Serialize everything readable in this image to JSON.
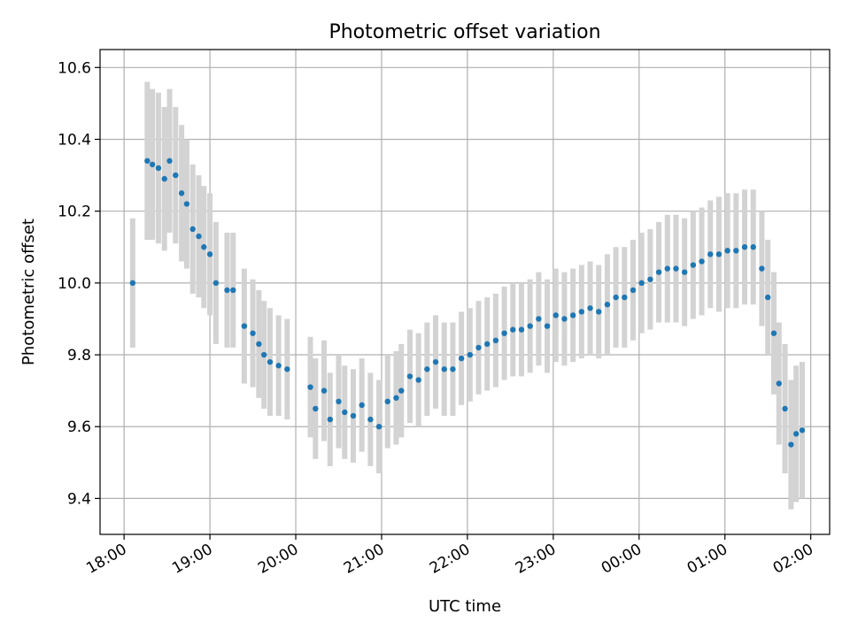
{
  "chart_data": {
    "type": "scatter",
    "title": "Photometric offset variation",
    "xlabel": "UTC time",
    "ylabel": "Photometric offset",
    "x_unit": "hours",
    "xlim": [
      -0.28,
      8.22
    ],
    "ylim": [
      9.3,
      10.65
    ],
    "x_ticks": [
      {
        "value": 0,
        "label": "18:00"
      },
      {
        "value": 1,
        "label": "19:00"
      },
      {
        "value": 2,
        "label": "20:00"
      },
      {
        "value": 3,
        "label": "21:00"
      },
      {
        "value": 4,
        "label": "22:00"
      },
      {
        "value": 5,
        "label": "23:00"
      },
      {
        "value": 6,
        "label": "00:00"
      },
      {
        "value": 7,
        "label": "01:00"
      },
      {
        "value": 8,
        "label": "02:00"
      }
    ],
    "y_ticks": [
      {
        "value": 9.4,
        "label": "9.4"
      },
      {
        "value": 9.6,
        "label": "9.6"
      },
      {
        "value": 9.8,
        "label": "9.8"
      },
      {
        "value": 10.0,
        "label": "10.0"
      },
      {
        "value": 10.2,
        "label": "10.2"
      },
      {
        "value": 10.4,
        "label": "10.4"
      },
      {
        "value": 10.6,
        "label": "10.6"
      }
    ],
    "grid": true,
    "colors": {
      "points": "#1f77b4",
      "error_bars": "#d3d3d3",
      "grid": "#b0b0b0"
    },
    "series": [
      {
        "x_utc": [
          "18:06",
          "18:16",
          "18:20",
          "18:24",
          "18:28",
          "18:32",
          "18:36",
          "18:40",
          "18:44",
          "18:48",
          "18:52",
          "18:56",
          "19:00",
          "19:04",
          "19:12",
          "19:16",
          "19:24",
          "19:30",
          "19:34",
          "19:38",
          "19:42",
          "19:48",
          "19:54",
          "20:10",
          "20:14",
          "20:20",
          "20:24",
          "20:30",
          "20:34",
          "20:40",
          "20:46",
          "20:52",
          "20:58",
          "21:04",
          "21:10",
          "21:14",
          "21:20",
          "21:26",
          "21:32",
          "21:38",
          "21:44",
          "21:50",
          "21:56",
          "22:02",
          "22:08",
          "22:14",
          "22:20",
          "22:26",
          "22:32",
          "22:38",
          "22:44",
          "22:50",
          "22:56",
          "23:02",
          "23:08",
          "23:14",
          "23:20",
          "23:26",
          "23:32",
          "23:38",
          "23:44",
          "23:50",
          "23:56",
          "00:02",
          "00:08",
          "00:14",
          "00:20",
          "00:26",
          "00:32",
          "00:38",
          "00:44",
          "00:50",
          "00:56",
          "01:02",
          "01:08",
          "01:14",
          "01:20",
          "01:26",
          "01:30",
          "01:34",
          "01:38",
          "01:42",
          "01:46",
          "01:50",
          "01:54"
        ],
        "x": [
          0.1,
          0.27,
          0.33,
          0.4,
          0.47,
          0.53,
          0.6,
          0.67,
          0.73,
          0.8,
          0.87,
          0.93,
          1.0,
          1.07,
          1.2,
          1.27,
          1.4,
          1.5,
          1.57,
          1.63,
          1.7,
          1.8,
          1.9,
          2.17,
          2.23,
          2.33,
          2.4,
          2.5,
          2.57,
          2.67,
          2.77,
          2.87,
          2.97,
          3.07,
          3.17,
          3.23,
          3.33,
          3.43,
          3.53,
          3.63,
          3.73,
          3.83,
          3.93,
          4.03,
          4.13,
          4.23,
          4.33,
          4.43,
          4.53,
          4.63,
          4.73,
          4.83,
          4.93,
          5.03,
          5.13,
          5.23,
          5.33,
          5.43,
          5.53,
          5.63,
          5.73,
          5.83,
          5.93,
          6.03,
          6.13,
          6.23,
          6.33,
          6.43,
          6.53,
          6.63,
          6.73,
          6.83,
          6.93,
          7.03,
          7.13,
          7.23,
          7.33,
          7.43,
          7.5,
          7.57,
          7.63,
          7.7,
          7.77,
          7.83,
          7.9
        ],
        "y": [
          10.0,
          10.34,
          10.33,
          10.32,
          10.29,
          10.34,
          10.3,
          10.25,
          10.22,
          10.15,
          10.13,
          10.1,
          10.08,
          10.0,
          9.98,
          9.98,
          9.88,
          9.86,
          9.83,
          9.8,
          9.78,
          9.77,
          9.76,
          9.71,
          9.65,
          9.7,
          9.62,
          9.67,
          9.64,
          9.63,
          9.66,
          9.62,
          9.6,
          9.67,
          9.68,
          9.7,
          9.74,
          9.73,
          9.76,
          9.78,
          9.76,
          9.76,
          9.79,
          9.8,
          9.82,
          9.83,
          9.84,
          9.86,
          9.87,
          9.87,
          9.88,
          9.9,
          9.88,
          9.91,
          9.9,
          9.91,
          9.92,
          9.93,
          9.92,
          9.94,
          9.96,
          9.96,
          9.98,
          10.0,
          10.01,
          10.03,
          10.04,
          10.04,
          10.03,
          10.05,
          10.06,
          10.08,
          10.08,
          10.09,
          10.09,
          10.1,
          10.1,
          10.04,
          9.96,
          9.86,
          9.72,
          9.65,
          9.55,
          9.58,
          9.59
        ],
        "yerr": [
          0.18,
          0.22,
          0.21,
          0.21,
          0.2,
          0.2,
          0.19,
          0.19,
          0.18,
          0.18,
          0.17,
          0.17,
          0.17,
          0.17,
          0.16,
          0.16,
          0.16,
          0.15,
          0.15,
          0.15,
          0.15,
          0.14,
          0.14,
          0.14,
          0.14,
          0.14,
          0.13,
          0.13,
          0.13,
          0.13,
          0.13,
          0.13,
          0.13,
          0.13,
          0.13,
          0.13,
          0.13,
          0.13,
          0.13,
          0.13,
          0.13,
          0.13,
          0.13,
          0.13,
          0.13,
          0.13,
          0.13,
          0.13,
          0.13,
          0.13,
          0.13,
          0.13,
          0.13,
          0.13,
          0.13,
          0.13,
          0.13,
          0.13,
          0.13,
          0.14,
          0.14,
          0.14,
          0.14,
          0.14,
          0.14,
          0.14,
          0.15,
          0.15,
          0.15,
          0.15,
          0.15,
          0.15,
          0.16,
          0.16,
          0.16,
          0.16,
          0.16,
          0.16,
          0.16,
          0.17,
          0.17,
          0.18,
          0.18,
          0.19,
          0.19
        ]
      }
    ]
  }
}
